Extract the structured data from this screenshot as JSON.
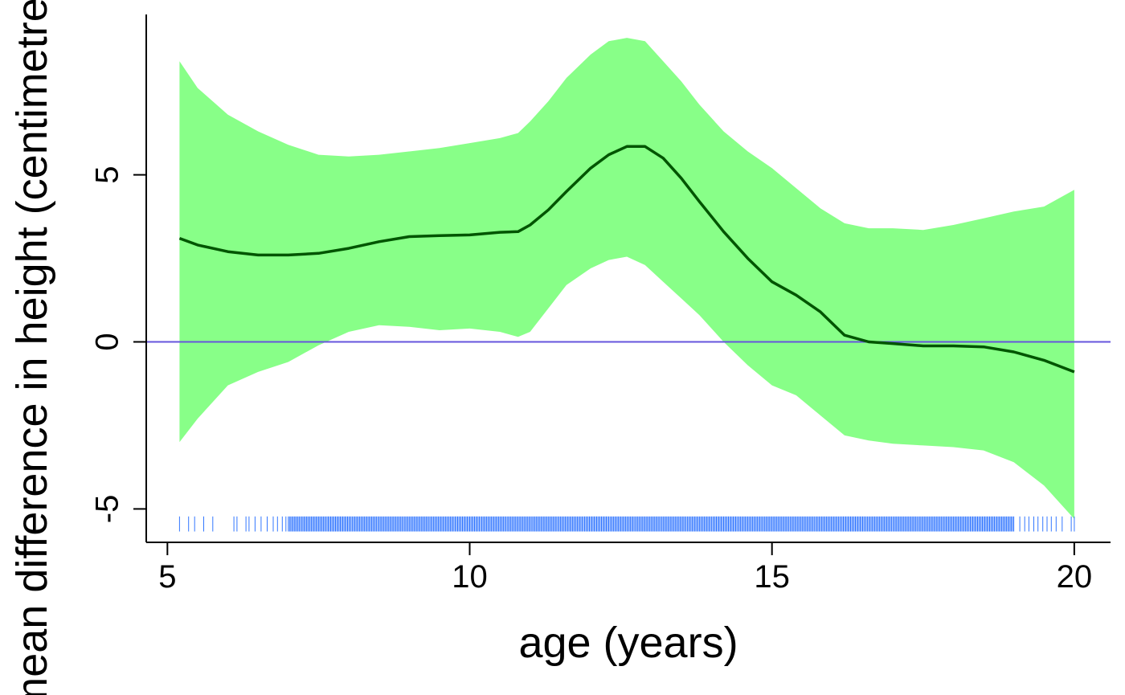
{
  "chart_data": {
    "type": "line",
    "xlabel": "age (years)",
    "ylabel": "mean difference in height (centimetres)",
    "xlim": [
      4.65,
      20.6
    ],
    "ylim": [
      -6.0,
      9.8
    ],
    "x_ticks": [
      5,
      10,
      15,
      20
    ],
    "x_tick_labels": [
      "5",
      "10",
      "15",
      "20"
    ],
    "y_ticks": [
      -5,
      0,
      5
    ],
    "y_tick_labels": [
      "-5",
      "0",
      "5"
    ],
    "grid": false,
    "legend": "none",
    "reference_line": {
      "y": 0,
      "color": "#6655dd"
    },
    "colors": {
      "band": "#88ff88",
      "line": "#005500",
      "rug": "#3377ff",
      "axis": "#000000"
    },
    "series": [
      {
        "role": "fit",
        "x": [
          5.2,
          5.5,
          6.0,
          6.5,
          7.0,
          7.5,
          8.0,
          8.5,
          9.0,
          9.5,
          10.0,
          10.5,
          10.8,
          11.0,
          11.3,
          11.6,
          12.0,
          12.3,
          12.6,
          12.9,
          13.2,
          13.5,
          13.8,
          14.2,
          14.6,
          15.0,
          15.4,
          15.8,
          16.2,
          16.6,
          17.0,
          17.5,
          18.0,
          18.5,
          19.0,
          19.5,
          20.0
        ],
        "y": [
          3.1,
          2.9,
          2.7,
          2.6,
          2.6,
          2.65,
          2.8,
          3.0,
          3.15,
          3.18,
          3.2,
          3.28,
          3.3,
          3.5,
          3.95,
          4.5,
          5.2,
          5.6,
          5.85,
          5.85,
          5.5,
          4.9,
          4.2,
          3.3,
          2.5,
          1.8,
          1.4,
          0.9,
          0.2,
          0.0,
          -0.05,
          -0.12,
          -0.12,
          -0.15,
          -0.3,
          -0.55,
          -0.9
        ]
      },
      {
        "role": "upper",
        "x": [
          5.2,
          5.5,
          6.0,
          6.5,
          7.0,
          7.5,
          8.0,
          8.5,
          9.0,
          9.5,
          10.0,
          10.5,
          10.8,
          11.0,
          11.3,
          11.6,
          12.0,
          12.3,
          12.6,
          12.9,
          13.2,
          13.5,
          13.8,
          14.2,
          14.6,
          15.0,
          15.4,
          15.8,
          16.2,
          16.6,
          17.0,
          17.5,
          18.0,
          18.5,
          19.0,
          19.5,
          20.0
        ],
        "y": [
          8.4,
          7.6,
          6.8,
          6.3,
          5.9,
          5.6,
          5.55,
          5.6,
          5.7,
          5.8,
          5.95,
          6.1,
          6.25,
          6.6,
          7.2,
          7.9,
          8.6,
          9.0,
          9.1,
          9.0,
          8.4,
          7.8,
          7.1,
          6.3,
          5.7,
          5.2,
          4.6,
          4.0,
          3.55,
          3.4,
          3.4,
          3.35,
          3.5,
          3.7,
          3.9,
          4.05,
          4.55
        ]
      },
      {
        "role": "lower",
        "x": [
          5.2,
          5.5,
          6.0,
          6.5,
          7.0,
          7.5,
          8.0,
          8.5,
          9.0,
          9.5,
          10.0,
          10.5,
          10.8,
          11.0,
          11.3,
          11.6,
          12.0,
          12.3,
          12.6,
          12.9,
          13.2,
          13.5,
          13.8,
          14.2,
          14.6,
          15.0,
          15.4,
          15.8,
          16.2,
          16.6,
          17.0,
          17.5,
          18.0,
          18.5,
          19.0,
          19.5,
          20.0
        ],
        "y": [
          -3.0,
          -2.3,
          -1.3,
          -0.9,
          -0.6,
          -0.1,
          0.3,
          0.5,
          0.45,
          0.35,
          0.4,
          0.3,
          0.15,
          0.3,
          1.0,
          1.7,
          2.2,
          2.45,
          2.55,
          2.3,
          1.8,
          1.3,
          0.8,
          0.0,
          -0.7,
          -1.3,
          -1.6,
          -2.2,
          -2.8,
          -2.95,
          -3.05,
          -3.1,
          -3.15,
          -3.25,
          -3.6,
          -4.3,
          -5.3
        ]
      }
    ],
    "rug": {
      "y": -5.45,
      "len": 0.45,
      "dense_range": [
        7.0,
        19.0
      ],
      "dense_step": 0.02,
      "sparse": [
        5.2,
        5.35,
        5.45,
        5.6,
        5.75,
        6.1,
        6.15,
        6.3,
        6.35,
        6.45,
        6.55,
        6.65,
        6.75,
        6.82,
        6.9,
        6.96,
        19.1,
        19.18,
        19.25,
        19.33,
        19.4,
        19.48,
        19.55,
        19.62,
        19.7,
        19.8,
        19.95,
        20.0
      ]
    }
  }
}
